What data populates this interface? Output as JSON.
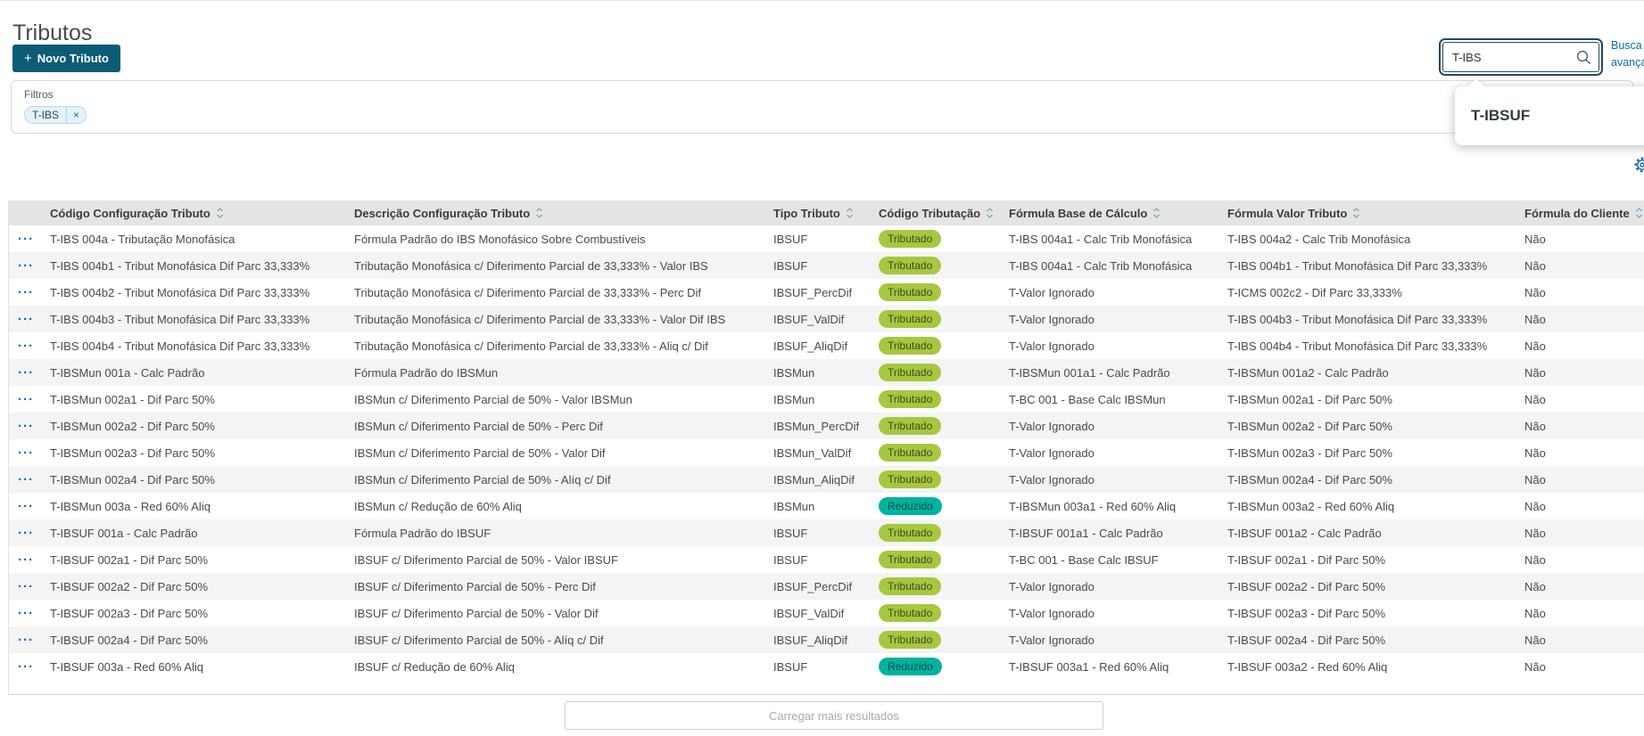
{
  "header": {
    "title": "Tributos",
    "plus": "+",
    "new_tributo_label": "Novo Tributo",
    "advanced_search": "Busca avançada"
  },
  "search": {
    "value": "T-IBS",
    "suggestion": "T-IBSUF"
  },
  "filters": {
    "label": "Filtros",
    "chip": "T-IBS",
    "chip_close": "×"
  },
  "table": {
    "row_menu": "···",
    "columns": [
      "Código Configuração Tributo",
      "Descrição Configuração Tributo",
      "Tipo Tributo",
      "Código Tributação",
      "Fórmula Base de Cálculo",
      "Fórmula Valor Tributo",
      "Fórmula do Cliente"
    ],
    "rows": [
      {
        "codigo": "T-IBS 004a - Tributação Monofásica",
        "descricao": "Fórmula Padrão do IBS Monofásico Sobre Combustíveis",
        "tipo": "IBSUF",
        "tributacao": "Tributado",
        "formula_base": "T-IBS 004a1 - Calc Trib Monofásica",
        "formula_valor": "T-IBS 004a2 - Calc Trib Monofásica",
        "formula_cliente": "Não"
      },
      {
        "codigo": "T-IBS 004b1 - Tribut Monofásica Dif Parc 33,333%",
        "descricao": "Tributação Monofásica c/ Diferimento Parcial de 33,333% - Valor IBS",
        "tipo": "IBSUF",
        "tributacao": "Tributado",
        "formula_base": "T-IBS 004a1 - Calc Trib Monofásica",
        "formula_valor": "T-IBS 004b1 - Tribut Monofásica Dif Parc 33,333%",
        "formula_cliente": "Não"
      },
      {
        "codigo": "T-IBS 004b2 - Tribut Monofásica Dif Parc 33,333%",
        "descricao": "Tributação Monofásica c/ Diferimento Parcial de 33,333% - Perc Dif",
        "tipo": "IBSUF_PercDif",
        "tributacao": "Tributado",
        "formula_base": "T-Valor Ignorado",
        "formula_valor": "T-ICMS 002c2 - Dif Parc 33,333%",
        "formula_cliente": "Não"
      },
      {
        "codigo": "T-IBS 004b3 - Tribut Monofásica Dif Parc 33,333%",
        "descricao": "Tributação Monofásica c/ Diferimento Parcial de 33,333% - Valor Dif IBS",
        "tipo": "IBSUF_ValDif",
        "tributacao": "Tributado",
        "formula_base": "T-Valor Ignorado",
        "formula_valor": "T-IBS 004b3 - Tribut Monofásica Dif Parc 33,333%",
        "formula_cliente": "Não"
      },
      {
        "codigo": "T-IBS 004b4 - Tribut Monofásica Dif Parc 33,333%",
        "descricao": "Tributação Monofásica c/ Diferimento Parcial de 33,333% - Aliq c/ Dif",
        "tipo": "IBSUF_AliqDif",
        "tributacao": "Tributado",
        "formula_base": "T-Valor Ignorado",
        "formula_valor": "T-IBS 004b4 - Tribut Monofásica Dif Parc 33,333%",
        "formula_cliente": "Não"
      },
      {
        "codigo": "T-IBSMun 001a - Calc Padrão",
        "descricao": "Fórmula Padrão do IBSMun",
        "tipo": "IBSMun",
        "tributacao": "Tributado",
        "formula_base": "T-IBSMun 001a1 - Calc Padrão",
        "formula_valor": "T-IBSMun 001a2 - Calc Padrão",
        "formula_cliente": "Não"
      },
      {
        "codigo": "T-IBSMun 002a1 - Dif Parc 50%",
        "descricao": "IBSMun c/ Diferimento Parcial de 50% - Valor IBSMun",
        "tipo": "IBSMun",
        "tributacao": "Tributado",
        "formula_base": "T-BC 001 - Base Calc IBSMun",
        "formula_valor": "T-IBSMun 002a1 - Dif Parc 50%",
        "formula_cliente": "Não"
      },
      {
        "codigo": "T-IBSMun 002a2 - Dif Parc 50%",
        "descricao": "IBSMun c/ Diferimento Parcial de 50% - Perc Dif",
        "tipo": "IBSMun_PercDif",
        "tributacao": "Tributado",
        "formula_base": "T-Valor Ignorado",
        "formula_valor": "T-IBSMun 002a2 - Dif Parc 50%",
        "formula_cliente": "Não"
      },
      {
        "codigo": "T-IBSMun 002a3 - Dif Parc 50%",
        "descricao": "IBSMun c/ Diferimento Parcial de 50% - Valor Dif",
        "tipo": "IBSMun_ValDif",
        "tributacao": "Tributado",
        "formula_base": "T-Valor Ignorado",
        "formula_valor": "T-IBSMun 002a3 - Dif Parc 50%",
        "formula_cliente": "Não"
      },
      {
        "codigo": "T-IBSMun 002a4 - Dif Parc 50%",
        "descricao": "IBSMun c/ Diferimento Parcial de 50% - Alíq c/ Dif",
        "tipo": "IBSMun_AliqDif",
        "tributacao": "Tributado",
        "formula_base": "T-Valor Ignorado",
        "formula_valor": "T-IBSMun 002a4 - Dif Parc 50%",
        "formula_cliente": "Não"
      },
      {
        "codigo": "T-IBSMun 003a - Red 60% Aliq",
        "descricao": "IBSMun c/ Redução de 60% Aliq",
        "tipo": "IBSMun",
        "tributacao": "Reduzido",
        "formula_base": "T-IBSMun 003a1 - Red 60% Aliq",
        "formula_valor": "T-IBSMun 003a2 - Red 60% Aliq",
        "formula_cliente": "Não"
      },
      {
        "codigo": "T-IBSUF 001a - Calc Padrão",
        "descricao": "Fórmula Padrão do IBSUF",
        "tipo": "IBSUF",
        "tributacao": "Tributado",
        "formula_base": "T-IBSUF 001a1 - Calc Padrão",
        "formula_valor": "T-IBSUF 001a2 - Calc Padrão",
        "formula_cliente": "Não"
      },
      {
        "codigo": "T-IBSUF 002a1 - Dif Parc 50%",
        "descricao": "IBSUF c/ Diferimento Parcial de 50% - Valor IBSUF",
        "tipo": "IBSUF",
        "tributacao": "Tributado",
        "formula_base": "T-BC 001 - Base Calc IBSUF",
        "formula_valor": "T-IBSUF 002a1 - Dif Parc 50%",
        "formula_cliente": "Não"
      },
      {
        "codigo": "T-IBSUF 002a2 - Dif Parc 50%",
        "descricao": "IBSUF c/ Diferimento Parcial de 50% - Perc Dif",
        "tipo": "IBSUF_PercDif",
        "tributacao": "Tributado",
        "formula_base": "T-Valor Ignorado",
        "formula_valor": "T-IBSUF 002a2 - Dif Parc 50%",
        "formula_cliente": "Não"
      },
      {
        "codigo": "T-IBSUF 002a3 - Dif Parc 50%",
        "descricao": "IBSUF c/ Diferimento Parcial de 50% - Valor Dif",
        "tipo": "IBSUF_ValDif",
        "tributacao": "Tributado",
        "formula_base": "T-Valor Ignorado",
        "formula_valor": "T-IBSUF 002a3 - Dif Parc 50%",
        "formula_cliente": "Não"
      },
      {
        "codigo": "T-IBSUF 002a4 - Dif Parc 50%",
        "descricao": "IBSUF c/ Diferimento Parcial de 50% - Alíq c/ Dif",
        "tipo": "IBSUF_AliqDif",
        "tributacao": "Tributado",
        "formula_base": "T-Valor Ignorado",
        "formula_valor": "T-IBSUF 002a4 - Dif Parc 50%",
        "formula_cliente": "Não"
      },
      {
        "codigo": "T-IBSUF 003a - Red 60% Aliq",
        "descricao": "IBSUF c/ Redução de 60% Aliq",
        "tipo": "IBSUF",
        "tributacao": "Reduzido",
        "formula_base": "T-IBSUF 003a1 - Red 60% Aliq",
        "formula_valor": "T-IBSUF 003a2 - Red 60% Aliq",
        "formula_cliente": "Não"
      }
    ]
  },
  "footer": {
    "load_more": "Carregar mais resultados"
  },
  "colors": {
    "primary": "#0c5c75",
    "link": "#0e6ba8",
    "tag_tributado_bg": "#a6c73f",
    "tag_reduzido_bg": "#00b2a0",
    "header_bg": "#e4e4e4",
    "zebra": "#f4f4f4"
  }
}
